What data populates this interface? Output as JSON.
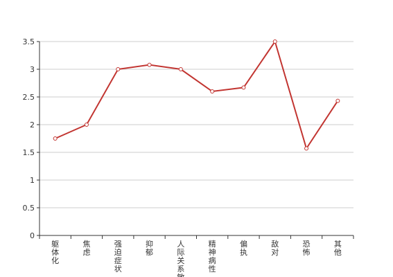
{
  "chart_data": {
    "type": "line",
    "categories": [
      "躯体化",
      "焦虑",
      "强迫症状",
      "抑郁",
      "人际关系敏感",
      "精神病性",
      "偏执",
      "敌对",
      "恐怖",
      "其他"
    ],
    "series": [
      {
        "name": null,
        "color": "#c23531",
        "values": [
          1.75,
          2.0,
          3.0,
          3.08,
          3.0,
          2.6,
          2.67,
          3.5,
          1.57,
          2.43
        ]
      }
    ],
    "ylim": [
      0,
      3.5
    ],
    "yticks": [
      0,
      0.5,
      1,
      1.5,
      2,
      2.5,
      3,
      3.5
    ],
    "grid": true
  }
}
